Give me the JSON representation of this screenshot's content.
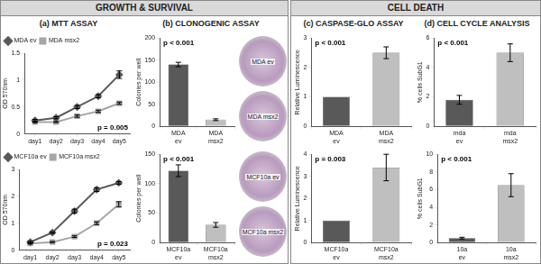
{
  "sections": [
    {
      "title": "GROWTH & SURVIVAL",
      "panels": [
        "(a) MTT ASSAY",
        "(b) CLONOGENIC ASSAY"
      ]
    },
    {
      "title": "CELL DEATH",
      "panels": [
        "(c) CASPASE-GLO ASSAY",
        "(d) CELL CYCLE ANALYSIS"
      ]
    }
  ],
  "images": [
    [
      "MDA ev",
      "MDA msx2"
    ],
    [
      "MCF10a ev",
      "MCF10a msx2"
    ]
  ],
  "chart_data": [
    {
      "type": "line",
      "y_label": "OD 570nm",
      "annotation": "p = 0.005",
      "legend": "upper left",
      "grid": false,
      "categories": [
        "day1",
        "day2",
        "day3",
        "day4",
        "day5"
      ],
      "series": [
        {
          "name": "MDA ev",
          "color": "#595959",
          "marker": "diamond",
          "values": [
            0.25,
            0.3,
            0.5,
            0.7,
            1.1
          ],
          "errors": [
            0.02,
            0.02,
            0.03,
            0.03,
            0.07
          ]
        },
        {
          "name": "MDA msx2",
          "color": "#a6a6a6",
          "marker": "square",
          "values": [
            0.22,
            0.22,
            0.33,
            0.42,
            0.57
          ],
          "errors": [
            0.01,
            0.01,
            0.02,
            0.02,
            0.02
          ]
        }
      ],
      "ylim": [
        0,
        1.5
      ],
      "yticks": [
        0,
        0.5,
        1,
        1.5
      ]
    },
    {
      "type": "bar",
      "y_label": "Colonies per well",
      "annotation": "p < 0.001",
      "grid": false,
      "categories": [
        "MDA ev",
        "MDA msx2"
      ],
      "values": [
        140,
        15
      ],
      "errors": [
        5,
        2
      ],
      "colors": [
        "#595959",
        "#bfbfbf"
      ],
      "ylim": [
        0,
        200
      ],
      "yticks": [
        0,
        50,
        100,
        150,
        200
      ]
    },
    {
      "type": "bar",
      "y_label": "Relative Luminescence",
      "annotation": "p < 0.001",
      "grid": false,
      "categories": [
        "MDA ev",
        "MDA msx2"
      ],
      "values": [
        1,
        2.5
      ],
      "errors": [
        0,
        0.2
      ],
      "colors": [
        "#595959",
        "#bfbfbf"
      ],
      "ylim": [
        0,
        3
      ],
      "yticks": [
        0,
        1,
        2,
        3
      ]
    },
    {
      "type": "bar",
      "y_label": "% cells SubG1",
      "annotation": "p < 0.001",
      "grid": false,
      "categories": [
        "mda ev",
        "mda msx2"
      ],
      "values": [
        1.8,
        5.0
      ],
      "errors": [
        0.3,
        0.6
      ],
      "colors": [
        "#595959",
        "#bfbfbf"
      ],
      "ylim": [
        0,
        6
      ],
      "yticks": [
        0,
        2,
        4,
        6
      ]
    },
    {
      "type": "line",
      "y_label": "OD 570nm",
      "annotation": "p = 0.023",
      "legend": "upper left",
      "grid": false,
      "categories": [
        "day1",
        "day2",
        "day3",
        "day4",
        "day5"
      ],
      "series": [
        {
          "name": "MCF10a ev",
          "color": "#595959",
          "marker": "diamond",
          "values": [
            0.3,
            0.65,
            1.45,
            2.25,
            2.5
          ],
          "errors": [
            0.03,
            0.03,
            0.07,
            0.07,
            0.05
          ]
        },
        {
          "name": "MCF10a msx2",
          "color": "#a6a6a6",
          "marker": "square",
          "values": [
            0.25,
            0.3,
            0.5,
            1.0,
            1.7
          ],
          "errors": [
            0.02,
            0.02,
            0.03,
            0.05,
            0.1
          ]
        }
      ],
      "ylim": [
        0,
        3
      ],
      "yticks": [
        0,
        1,
        2,
        3
      ]
    },
    {
      "type": "bar",
      "y_label": "Colonies per well",
      "annotation": "p < 0.001",
      "grid": false,
      "categories": [
        "MCF10a ev",
        "MCF10a msx2"
      ],
      "values": [
        122,
        30
      ],
      "errors": [
        10,
        4
      ],
      "colors": [
        "#595959",
        "#bfbfbf"
      ],
      "ylim": [
        0,
        150
      ],
      "yticks": [
        0,
        50,
        100,
        150
      ]
    },
    {
      "type": "bar",
      "y_label": "Relative Luminescence",
      "annotation": "p = 0.003",
      "grid": false,
      "categories": [
        "MCF10a ev",
        "MCF10a msx2"
      ],
      "values": [
        1,
        3.4
      ],
      "errors": [
        0,
        0.6
      ],
      "colors": [
        "#595959",
        "#bfbfbf"
      ],
      "ylim": [
        0,
        4
      ],
      "yticks": [
        0,
        1,
        2,
        3,
        4
      ]
    },
    {
      "type": "bar",
      "y_label": "% cells SubG1",
      "annotation": "p < 0.001",
      "grid": false,
      "categories": [
        "10a ev",
        "10a msx2"
      ],
      "values": [
        0.5,
        6.5
      ],
      "errors": [
        0.1,
        1.3
      ],
      "colors": [
        "#595959",
        "#bfbfbf"
      ],
      "ylim": [
        0,
        10
      ],
      "yticks": [
        0,
        2,
        4,
        6,
        8,
        10
      ]
    }
  ]
}
